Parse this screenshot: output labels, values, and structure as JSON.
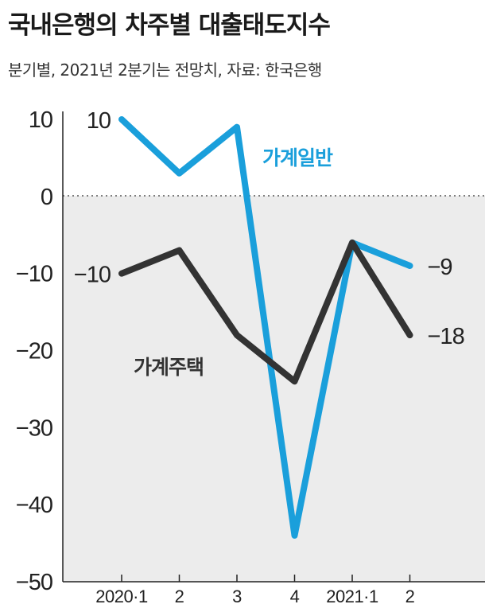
{
  "header": {
    "title": "국내은행의 차주별 대출태도지수",
    "subtitle": "분기별, 2021년 2분기는 전망치, 자료: 한국은행"
  },
  "chart_data": {
    "type": "line",
    "title": "국내은행의 차주별 대출태도지수",
    "subtitle": "분기별, 2021년 2분기는 전망치, 자료: 한국은행",
    "categories": [
      "2020·1",
      "2",
      "3",
      "4",
      "2021·1",
      "2"
    ],
    "ylim": [
      -50,
      10
    ],
    "yticks": [
      10,
      0,
      -10,
      -20,
      -30,
      -40,
      -50
    ],
    "ytick_labels": [
      "10",
      "0",
      "−10",
      "−20",
      "−30",
      "−40",
      "−50"
    ],
    "negative_region_shaded": true,
    "zero_line": "dotted",
    "series": [
      {
        "name": "가계일반",
        "color": "#1a9fdb",
        "values": [
          10,
          3,
          9,
          -44,
          -6,
          -9
        ],
        "labels": [
          {
            "index": 0,
            "text": "10"
          },
          {
            "index": 5,
            "text": "−9"
          }
        ]
      },
      {
        "name": "가계주택",
        "color": "#333333",
        "values": [
          -10,
          -7,
          -18,
          -24,
          -6,
          -18
        ],
        "labels": [
          {
            "index": 0,
            "text": "−10"
          },
          {
            "index": 5,
            "text": "−18"
          }
        ]
      }
    ]
  }
}
